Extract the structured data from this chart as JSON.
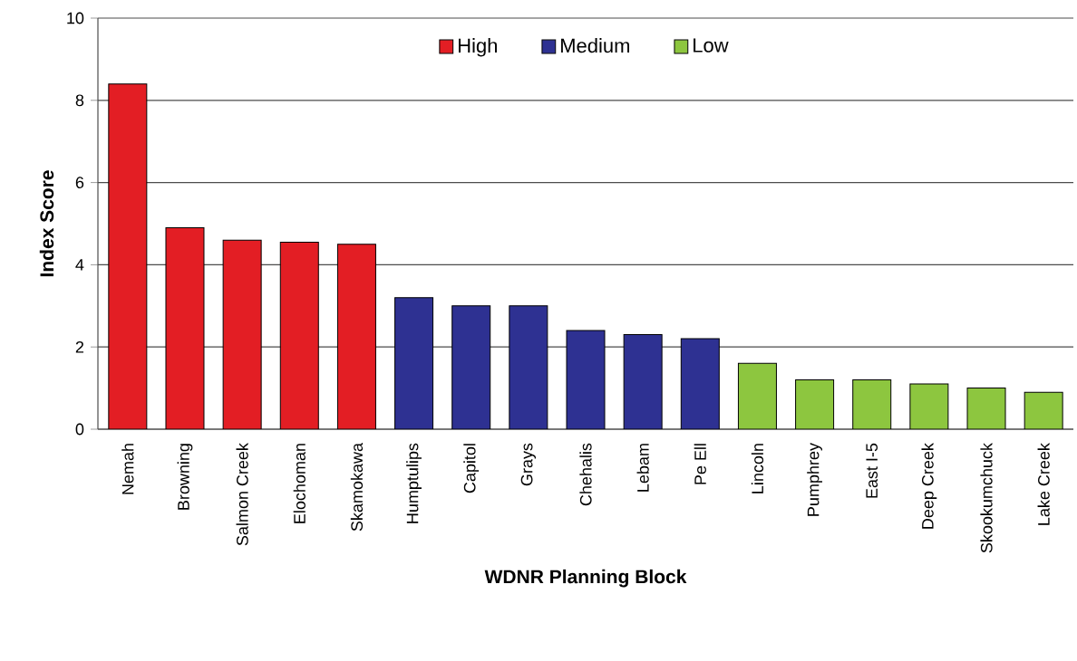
{
  "chart_data": {
    "type": "bar",
    "xlabel": "WDNR Planning Block",
    "ylabel": "Index Score",
    "categories": [
      "Nemah",
      "Browning",
      "Salmon Creek",
      "Elochoman",
      "Skamokawa",
      "Humptulips",
      "Capitol",
      "Grays",
      "Chehalis",
      "Lebam",
      "Pe Ell",
      "Lincoln",
      "Pumphrey",
      "East I-5",
      "Deep Creek",
      "Skookumchuck",
      "Lake Creek"
    ],
    "series": [
      {
        "name": "High",
        "color": "#e31e24",
        "values": [
          8.4,
          4.9,
          4.6,
          4.55,
          4.5,
          null,
          null,
          null,
          null,
          null,
          null,
          null,
          null,
          null,
          null,
          null,
          null
        ]
      },
      {
        "name": "Medium",
        "color": "#2e3192",
        "values": [
          null,
          null,
          null,
          null,
          null,
          3.2,
          3.0,
          3.0,
          2.4,
          2.3,
          2.2,
          null,
          null,
          null,
          null,
          null,
          null
        ]
      },
      {
        "name": "Low",
        "color": "#8dc63f",
        "values": [
          null,
          null,
          null,
          null,
          null,
          null,
          null,
          null,
          null,
          null,
          null,
          1.6,
          1.2,
          1.2,
          1.1,
          1.0,
          0.9
        ]
      }
    ],
    "ylim": [
      0,
      10
    ],
    "yticks": [
      0,
      2,
      4,
      6,
      8,
      10
    ],
    "grid": "y",
    "legend": "top"
  }
}
